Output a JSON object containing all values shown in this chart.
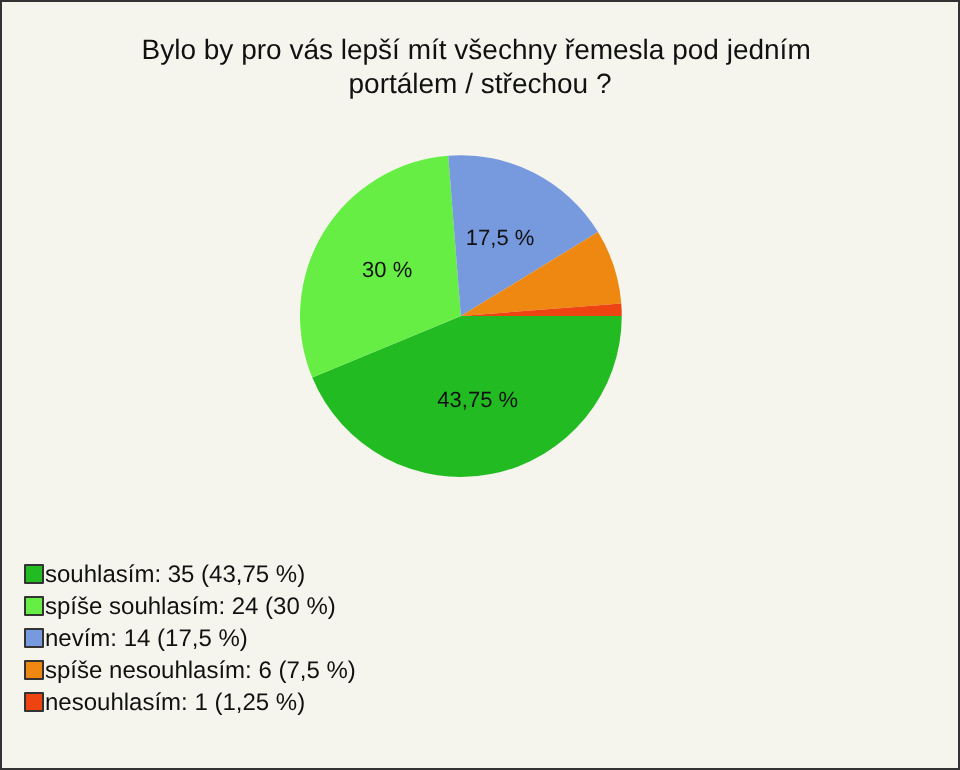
{
  "chart_data": {
    "type": "pie",
    "title": "Bylo by pro vás lepší mít všechny řemesla pod jedním portálem / střechou ?",
    "categories": [
      "souhlasím: 35 (43,75 %)",
      "spíše souhlasím: 24 (30 %)",
      "nevím: 14 (17,5 %)",
      "spíše nesouhlasím: 6 (7,5 %)",
      "nesouhlasím: 1 (1,25 %)"
    ],
    "values": [
      43.75,
      30,
      17.5,
      7.5,
      1.25
    ],
    "colors": [
      "#22bb22",
      "#66ee44",
      "#7799dd",
      "#ee8811",
      "#ee4411"
    ],
    "value_labels": [
      "43,75 %",
      "30 %",
      "17,5 %",
      null,
      null
    ],
    "legend": "bottom left"
  }
}
